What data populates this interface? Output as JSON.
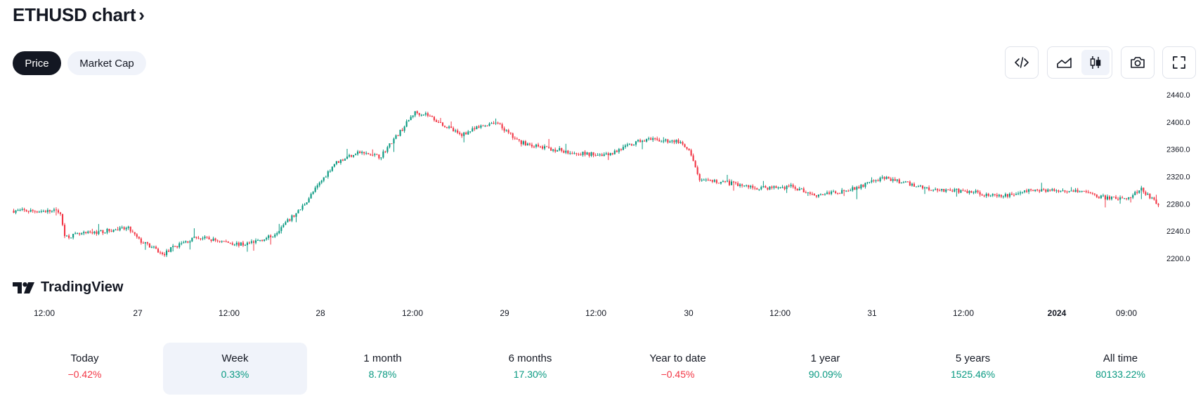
{
  "header": {
    "title": "ETHUSD chart",
    "chevron": "›"
  },
  "tabs": [
    {
      "label": "Price",
      "active": true
    },
    {
      "label": "Market Cap",
      "active": false
    }
  ],
  "toolbar": {
    "embed_icon": "code-icon",
    "area_icon": "area-chart-icon",
    "candle_icon": "candlestick-icon",
    "snapshot_icon": "camera-icon",
    "fullscreen_icon": "fullscreen-icon"
  },
  "watermark": {
    "text": "TradingView"
  },
  "colors": {
    "up": "#089981",
    "down": "#f23645",
    "text": "#131722",
    "accent_bg": "#f0f3fa"
  },
  "chart_data": {
    "type": "candlestick",
    "symbol": "ETHUSD",
    "y_ticks": [
      "2440.0",
      "2400.0",
      "2360.0",
      "2320.0",
      "2280.0",
      "2240.0",
      "2200.0"
    ],
    "x_ticks": [
      "12:00",
      "27",
      "12:00",
      "28",
      "12:00",
      "29",
      "12:00",
      "30",
      "12:00",
      "31",
      "12:00",
      "2024",
      "09:00"
    ],
    "ylim": [
      2180,
      2450
    ],
    "price_path": [
      [
        0,
        2270
      ],
      [
        0.04,
        2269
      ],
      [
        0.045,
        2232
      ],
      [
        0.07,
        2238
      ],
      [
        0.1,
        2244
      ],
      [
        0.11,
        2226
      ],
      [
        0.125,
        2212
      ],
      [
        0.13,
        2205
      ],
      [
        0.14,
        2217
      ],
      [
        0.16,
        2231
      ],
      [
        0.2,
        2220
      ],
      [
        0.225,
        2232
      ],
      [
        0.25,
        2271
      ],
      [
        0.28,
        2339
      ],
      [
        0.3,
        2356
      ],
      [
        0.32,
        2349
      ],
      [
        0.34,
        2391
      ],
      [
        0.35,
        2414
      ],
      [
        0.36,
        2412
      ],
      [
        0.39,
        2381
      ],
      [
        0.42,
        2401
      ],
      [
        0.44,
        2372
      ],
      [
        0.46,
        2363
      ],
      [
        0.5,
        2353
      ],
      [
        0.52,
        2353
      ],
      [
        0.55,
        2374
      ],
      [
        0.58,
        2372
      ],
      [
        0.59,
        2357
      ],
      [
        0.6,
        2313
      ],
      [
        0.62,
        2312
      ],
      [
        0.65,
        2303
      ],
      [
        0.68,
        2305
      ],
      [
        0.7,
        2293
      ],
      [
        0.73,
        2300
      ],
      [
        0.76,
        2318
      ],
      [
        0.8,
        2302
      ],
      [
        0.84,
        2297
      ],
      [
        0.86,
        2290
      ],
      [
        0.89,
        2300
      ],
      [
        0.93,
        2300
      ],
      [
        0.95,
        2290
      ],
      [
        0.97,
        2286
      ],
      [
        0.985,
        2301
      ],
      [
        1.0,
        2279
      ]
    ]
  },
  "performance": [
    {
      "label": "Today",
      "value": "−0.42%",
      "dir": "neg",
      "selected": false
    },
    {
      "label": "Week",
      "value": "0.33%",
      "dir": "pos",
      "selected": true
    },
    {
      "label": "1 month",
      "value": "8.78%",
      "dir": "pos",
      "selected": false
    },
    {
      "label": "6 months",
      "value": "17.30%",
      "dir": "pos",
      "selected": false
    },
    {
      "label": "Year to date",
      "value": "−0.45%",
      "dir": "neg",
      "selected": false
    },
    {
      "label": "1 year",
      "value": "90.09%",
      "dir": "pos",
      "selected": false
    },
    {
      "label": "5 years",
      "value": "1525.46%",
      "dir": "pos",
      "selected": false
    },
    {
      "label": "All time",
      "value": "80133.22%",
      "dir": "pos",
      "selected": false
    }
  ]
}
